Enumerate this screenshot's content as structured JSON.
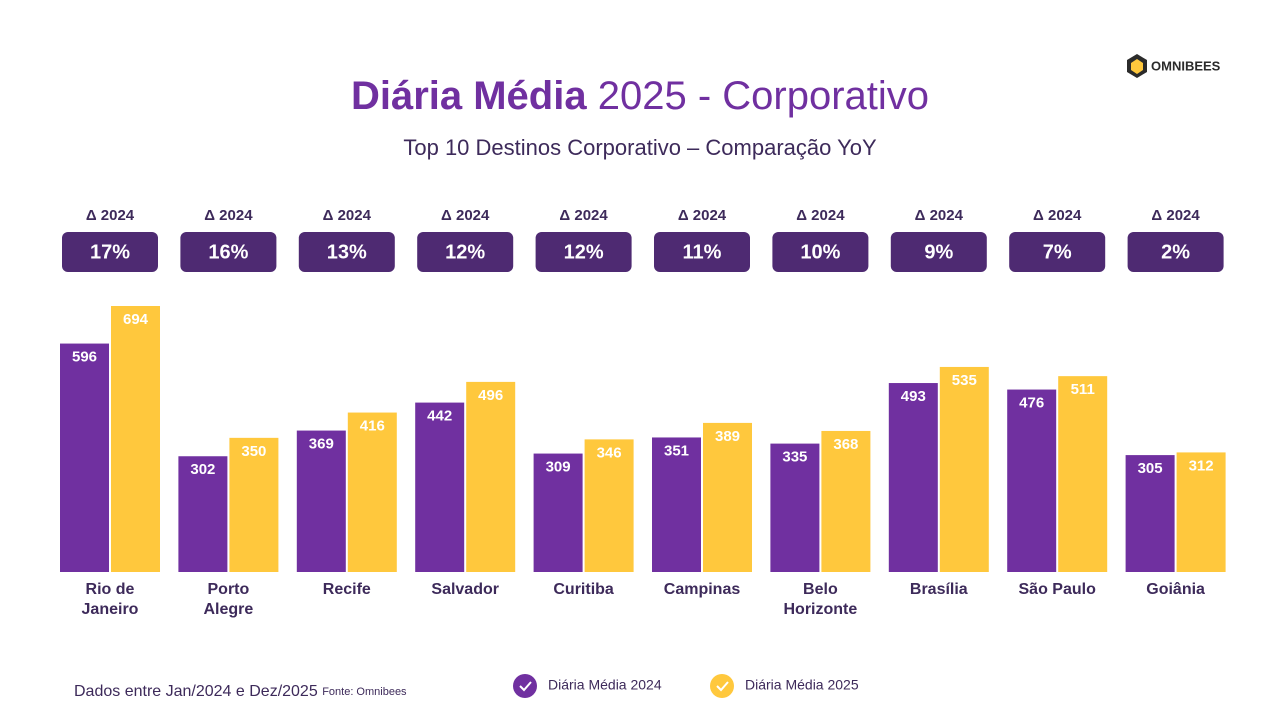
{
  "chart_data": {
    "type": "bar",
    "title_bold": "Diária Média",
    "title_rest": "2025 - Corporativo",
    "subtitle": "Top 10 Destinos Corporativo – Comparação YoY",
    "brand": "OMNIBEES",
    "categories": [
      "Rio de Janeiro",
      "Porto Alegre",
      "Recife",
      "Salvador",
      "Curitiba",
      "Campinas",
      "Belo Horizonte",
      "Brasília",
      "São Paulo",
      "Goiânia"
    ],
    "series": [
      {
        "name": "Diária Média 2024",
        "color": "#7030a0",
        "values": [
          596,
          302,
          369,
          442,
          309,
          351,
          335,
          493,
          476,
          305
        ]
      },
      {
        "name": "Diária Média 2025",
        "color": "#ffc83d",
        "values": [
          694,
          350,
          416,
          496,
          346,
          389,
          368,
          535,
          511,
          312
        ]
      }
    ],
    "delta_heading": "Δ 2024",
    "deltas": [
      17,
      16,
      13,
      12,
      12,
      11,
      10,
      9,
      7,
      2
    ],
    "delta_labels": [
      "17%",
      "16%",
      "13%",
      "12%",
      "12%",
      "11%",
      "10%",
      "9%",
      "7%",
      "2%"
    ],
    "delta_color": "#4e2a72",
    "footnote": "Dados entre Jan/2024 e Dez/2025",
    "source": "Fonte: Omnibees"
  }
}
